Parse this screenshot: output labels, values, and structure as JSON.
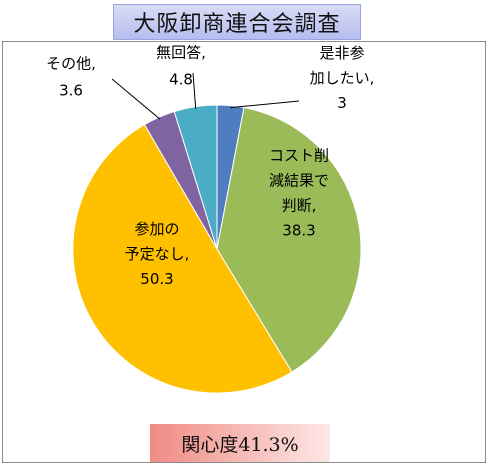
{
  "title": "大阪卸商連合会調査",
  "interest_badge": "関心度41.3%",
  "colors": {
    "title_bg": "#b7bdef",
    "badge_bg": "#f08a84",
    "leader_line": "#000000"
  },
  "chart_data": {
    "type": "pie",
    "title": "大阪卸商連合会調査",
    "slices": [
      {
        "name": "是非参加したい",
        "value": 3,
        "label_lines": [
          "是非参",
          "加したい,",
          "3"
        ],
        "color": "#4f7dc1"
      },
      {
        "name": "コスト削減結果で判断",
        "value": 38.3,
        "label_lines": [
          "コスト削",
          "減結果で",
          "判断,",
          "38.3"
        ],
        "color": "#9bbb59"
      },
      {
        "name": "参加の予定なし",
        "value": 50.3,
        "label_lines": [
          "参加の",
          "予定なし,",
          "50.3"
        ],
        "color": "#ffc000"
      },
      {
        "name": "その他",
        "value": 3.6,
        "label_lines": [
          "その他,",
          "3.6"
        ],
        "color": "#8064a2"
      },
      {
        "name": "無回答",
        "value": 4.8,
        "label_lines": [
          "無回答,",
          "4.8"
        ],
        "color": "#4bacc6"
      }
    ],
    "start_angle_deg": 0,
    "direction": "clockwise"
  }
}
